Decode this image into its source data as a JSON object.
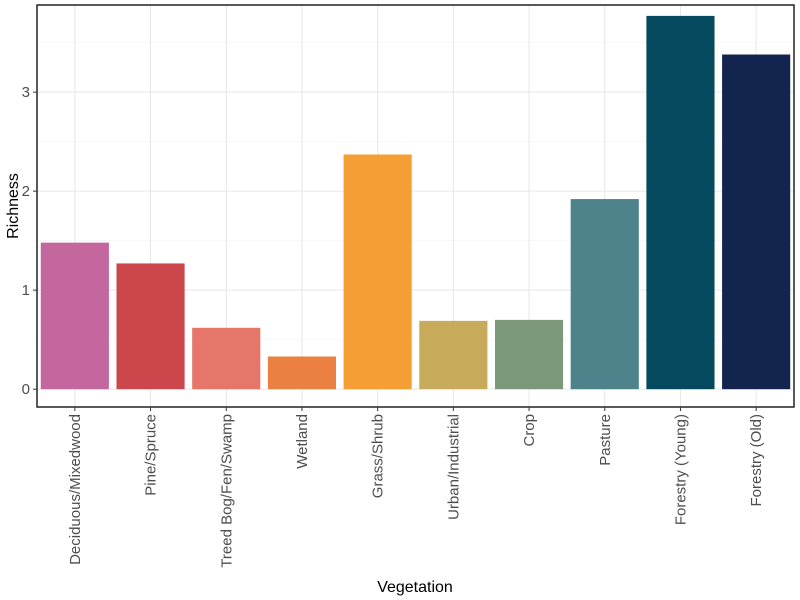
{
  "chart_data": {
    "type": "bar",
    "xlabel": "Vegetation",
    "ylabel": "Richness",
    "categories": [
      "Deciduous/Mixedwood",
      "Pine/Spruce",
      "Treed Bog/Fen/Swamp",
      "Wetland",
      "Grass/Shrub",
      "Urban/Industrial",
      "Crop",
      "Pasture",
      "Forestry (Young)",
      "Forestry (Old)"
    ],
    "values": [
      1.48,
      1.27,
      0.62,
      0.33,
      2.37,
      0.69,
      0.7,
      1.92,
      3.77,
      3.38
    ],
    "colors": [
      "#C4679F",
      "#CC474B",
      "#E6756A",
      "#EA8041",
      "#F59E34",
      "#C7AB5A",
      "#7B987A",
      "#4E838B",
      "#04495D",
      "#13244F"
    ],
    "ylim": [
      -0.18,
      3.88
    ],
    "yticks": [
      0,
      1,
      2,
      3
    ],
    "grid": true,
    "legend": "none"
  }
}
